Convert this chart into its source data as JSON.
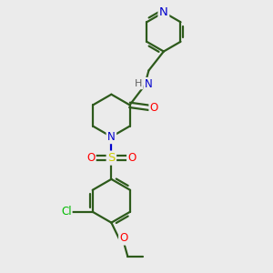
{
  "bg_color": "#ebebeb",
  "bond_color": "#2d5a1b",
  "N_color": "#0000cc",
  "O_color": "#ff0000",
  "S_color": "#cccc00",
  "Cl_color": "#00bb00",
  "H_color": "#606060",
  "line_width": 1.6,
  "font_size": 8.5,
  "xlim": [
    0,
    10
  ],
  "ylim": [
    0,
    10
  ]
}
